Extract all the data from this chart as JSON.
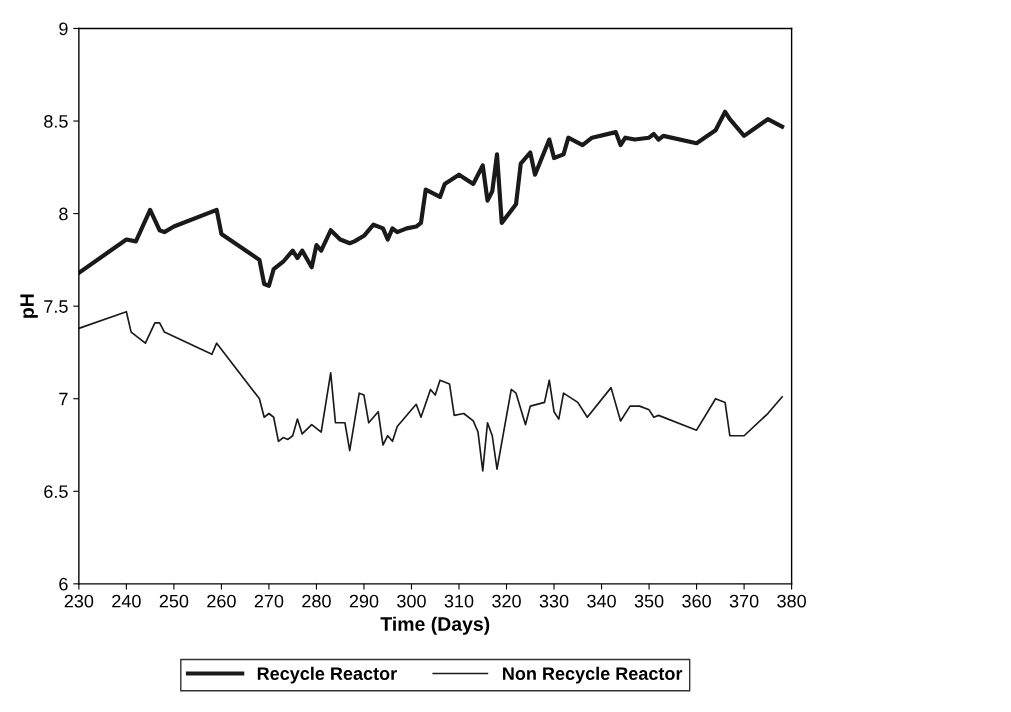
{
  "chart_data": {
    "type": "line",
    "xlabel": "Time (Days)",
    "ylabel": "pH",
    "xlim": [
      230,
      380
    ],
    "xticks": [
      230,
      240,
      250,
      260,
      270,
      280,
      290,
      300,
      310,
      320,
      330,
      340,
      350,
      360,
      370,
      380
    ],
    "ylim": [
      6,
      9
    ],
    "yticks": [
      6,
      6.5,
      7,
      7.5,
      8,
      8.5,
      9
    ],
    "grid": false,
    "legend": "bottom",
    "marker": "none",
    "line_style": "solid",
    "series": [
      {
        "name": "Recycle Reactor",
        "color": "#1a1a1a",
        "x": [
          230,
          240,
          242,
          245,
          247,
          248,
          250,
          259,
          260,
          268,
          269,
          270,
          271,
          273,
          275,
          276,
          277,
          279,
          280,
          281,
          283,
          285,
          287,
          288,
          290,
          292,
          294,
          295,
          296,
          297,
          299,
          301,
          302,
          303,
          306,
          307,
          310,
          313,
          315,
          316,
          317,
          318,
          319,
          322,
          323,
          325,
          326,
          329,
          330,
          332,
          333,
          336,
          338,
          343,
          344,
          345,
          347,
          350,
          351,
          352,
          353,
          360,
          364,
          366,
          367,
          370,
          375,
          378
        ],
        "values": [
          7.68,
          7.86,
          7.85,
          8.02,
          7.91,
          7.9,
          7.93,
          8.02,
          7.89,
          7.75,
          7.62,
          7.61,
          7.7,
          7.74,
          7.8,
          7.76,
          7.8,
          7.71,
          7.83,
          7.8,
          7.91,
          7.86,
          7.84,
          7.85,
          7.88,
          7.94,
          7.92,
          7.86,
          7.92,
          7.9,
          7.92,
          7.93,
          7.95,
          8.13,
          8.09,
          8.16,
          8.21,
          8.16,
          8.26,
          8.07,
          8.12,
          8.32,
          7.95,
          8.05,
          8.27,
          8.33,
          8.21,
          8.4,
          8.3,
          8.32,
          8.41,
          8.37,
          8.41,
          8.44,
          8.37,
          8.41,
          8.4,
          8.41,
          8.43,
          8.4,
          8.42,
          8.38,
          8.45,
          8.55,
          8.51,
          8.42,
          8.51,
          8.47
        ]
      },
      {
        "name": "Non Recycle Reactor",
        "color": "#1a1a1a",
        "x": [
          230,
          240,
          241,
          244,
          246,
          247,
          248,
          258,
          259,
          268,
          269,
          270,
          271,
          272,
          273,
          274,
          275,
          276,
          277,
          279,
          281,
          283,
          284,
          286,
          287,
          289,
          290,
          291,
          293,
          294,
          295,
          296,
          297,
          300,
          301,
          302,
          304,
          305,
          306,
          308,
          309,
          311,
          313,
          314,
          315,
          316,
          317,
          318,
          321,
          322,
          324,
          325,
          328,
          329,
          330,
          331,
          332,
          335,
          337,
          342,
          344,
          346,
          348,
          350,
          351,
          352,
          360,
          364,
          366,
          367,
          370,
          375,
          378
        ],
        "values": [
          7.38,
          7.47,
          7.36,
          7.3,
          7.41,
          7.41,
          7.36,
          7.24,
          7.3,
          7.0,
          6.9,
          6.92,
          6.9,
          6.77,
          6.79,
          6.78,
          6.8,
          6.89,
          6.81,
          6.86,
          6.82,
          7.14,
          6.87,
          6.87,
          6.72,
          7.03,
          7.02,
          6.87,
          6.93,
          6.75,
          6.8,
          6.77,
          6.85,
          6.94,
          6.97,
          6.9,
          7.05,
          7.02,
          7.1,
          7.08,
          6.91,
          6.92,
          6.88,
          6.82,
          6.61,
          6.87,
          6.8,
          6.62,
          7.05,
          7.03,
          6.86,
          6.96,
          6.98,
          7.1,
          6.93,
          6.89,
          7.03,
          6.98,
          6.9,
          7.06,
          6.88,
          6.96,
          6.96,
          6.94,
          6.9,
          6.91,
          6.83,
          7.0,
          6.98,
          6.8,
          6.8,
          6.92,
          7.01
        ]
      }
    ]
  }
}
